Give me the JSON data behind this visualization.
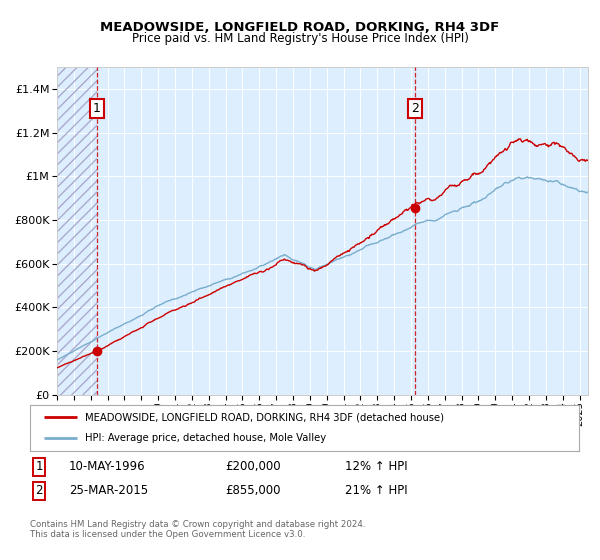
{
  "title": "MEADOWSIDE, LONGFIELD ROAD, DORKING, RH4 3DF",
  "subtitle": "Price paid vs. HM Land Registry's House Price Index (HPI)",
  "x_start": 1994.0,
  "x_end": 2025.5,
  "y_min": 0,
  "y_max": 1500000,
  "y_ticks": [
    0,
    200000,
    400000,
    600000,
    800000,
    1000000,
    1200000,
    1400000
  ],
  "y_tick_labels": [
    "£0",
    "£200K",
    "£400K",
    "£600K",
    "£800K",
    "£1M",
    "£1.2M",
    "£1.4M"
  ],
  "x_ticks": [
    1994,
    1995,
    1996,
    1997,
    1998,
    1999,
    2000,
    2001,
    2002,
    2003,
    2004,
    2005,
    2006,
    2007,
    2008,
    2009,
    2010,
    2011,
    2012,
    2013,
    2014,
    2015,
    2016,
    2017,
    2018,
    2019,
    2020,
    2021,
    2022,
    2023,
    2024,
    2025
  ],
  "red_line_color": "#cc0000",
  "blue_line_color": "#7aadcc",
  "point1_x": 1996.36,
  "point1_y": 200000,
  "point2_x": 2015.23,
  "point2_y": 855000,
  "vline1_x": 1996.36,
  "vline2_x": 2015.23,
  "legend1_label": "MEADOWSIDE, LONGFIELD ROAD, DORKING, RH4 3DF (detached house)",
  "legend2_label": "HPI: Average price, detached house, Mole Valley",
  "note1_num": "1",
  "note1_date": "10-MAY-1996",
  "note1_price": "£200,000",
  "note1_hpi": "12% ↑ HPI",
  "note2_num": "2",
  "note2_date": "25-MAR-2015",
  "note2_price": "£855,000",
  "note2_hpi": "21% ↑ HPI",
  "footer": "Contains HM Land Registry data © Crown copyright and database right 2024.\nThis data is licensed under the Open Government Licence v3.0.",
  "bg_color": "#ddeeff",
  "hatch_color": "#aaaacc"
}
